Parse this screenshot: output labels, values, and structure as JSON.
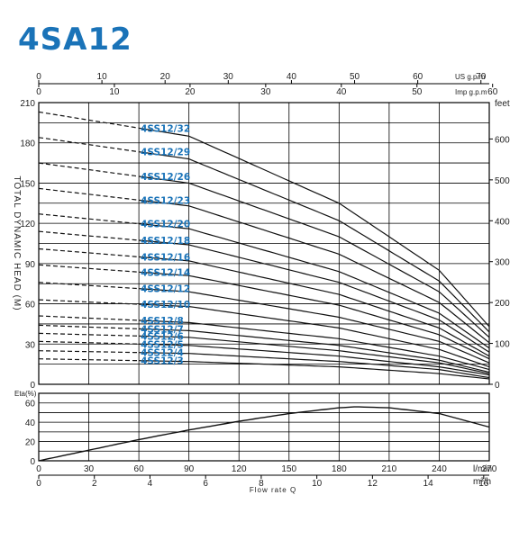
{
  "colors": {
    "title": "#1a73b8",
    "model_label": "#1a73b8",
    "curve": "#111111",
    "grid": "#000000"
  },
  "chart_data": [
    {
      "type": "line",
      "title": "4SA12",
      "top_axis_us": {
        "ticks": [
          "0",
          "10",
          "20",
          "30",
          "40",
          "50",
          "60",
          "70"
        ],
        "unit": "US g.p.m"
      },
      "top_axis_imp": {
        "ticks": [
          "0",
          "10",
          "20",
          "30",
          "40",
          "50",
          "60"
        ],
        "unit": "Imp g.p.m"
      },
      "ylabel": "TOTAL DYNAMIC HEAD (M)",
      "ylim": [
        0,
        210
      ],
      "y_ticks": [
        "0",
        "30",
        "60",
        "90",
        "120",
        "150",
        "180",
        "210"
      ],
      "right_axis": {
        "ticks": [
          "0",
          "100",
          "200",
          "300",
          "400",
          "500",
          "600"
        ],
        "unit": "feet"
      },
      "xlim": [
        0,
        270
      ],
      "series": [
        {
          "name": "4SS12/32",
          "values": [
            [
              0,
              203
            ],
            [
              90,
              185
            ],
            [
              180,
              135
            ],
            [
              240,
              85
            ],
            [
              270,
              43
            ]
          ]
        },
        {
          "name": "4SS12/29",
          "values": [
            [
              0,
              184
            ],
            [
              90,
              168
            ],
            [
              180,
              122
            ],
            [
              240,
              77
            ],
            [
              270,
              39
            ]
          ]
        },
        {
          "name": "4SS12/26",
          "values": [
            [
              0,
              165
            ],
            [
              90,
              150
            ],
            [
              180,
              110
            ],
            [
              240,
              69
            ],
            [
              270,
              35
            ]
          ]
        },
        {
          "name": "4SS12/23",
          "values": [
            [
              0,
              146
            ],
            [
              90,
              133
            ],
            [
              180,
              97
            ],
            [
              240,
              61
            ],
            [
              270,
              31
            ]
          ]
        },
        {
          "name": "4SS12/20",
          "values": [
            [
              0,
              127
            ],
            [
              90,
              116
            ],
            [
              180,
              84
            ],
            [
              240,
              53
            ],
            [
              270,
              27
            ]
          ]
        },
        {
          "name": "4SS12/18",
          "values": [
            [
              0,
              114
            ],
            [
              90,
              104
            ],
            [
              180,
              76
            ],
            [
              240,
              48
            ],
            [
              270,
              24
            ]
          ]
        },
        {
          "name": "4SS12/16",
          "values": [
            [
              0,
              101
            ],
            [
              90,
              92
            ],
            [
              180,
              67
            ],
            [
              240,
              42
            ],
            [
              270,
              21
            ]
          ]
        },
        {
          "name": "4SS12/14",
          "values": [
            [
              0,
              89
            ],
            [
              90,
              81
            ],
            [
              180,
              59
            ],
            [
              240,
              37
            ],
            [
              270,
              19
            ]
          ]
        },
        {
          "name": "4SS12/12",
          "values": [
            [
              0,
              76
            ],
            [
              90,
              69
            ],
            [
              180,
              50
            ],
            [
              240,
              32
            ],
            [
              270,
              16
            ]
          ]
        },
        {
          "name": "4SS12/10",
          "values": [
            [
              0,
              63
            ],
            [
              90,
              58
            ],
            [
              180,
              42
            ],
            [
              240,
              26
            ],
            [
              270,
              13
            ]
          ]
        },
        {
          "name": "4SS12/8",
          "values": [
            [
              0,
              51
            ],
            [
              90,
              46
            ],
            [
              180,
              34
            ],
            [
              240,
              21
            ],
            [
              270,
              11
            ]
          ]
        },
        {
          "name": "4SS12/7",
          "values": [
            [
              0,
              44
            ],
            [
              90,
              40
            ],
            [
              180,
              29
            ],
            [
              240,
              18
            ],
            [
              270,
              9
            ]
          ]
        },
        {
          "name": "4SS12/6",
          "values": [
            [
              0,
              38
            ],
            [
              90,
              35
            ],
            [
              180,
              25
            ],
            [
              240,
              16
            ],
            [
              270,
              8
            ]
          ]
        },
        {
          "name": "4SS12/5",
          "values": [
            [
              0,
              32
            ],
            [
              90,
              29
            ],
            [
              180,
              21
            ],
            [
              240,
              13
            ],
            [
              270,
              7
            ]
          ]
        },
        {
          "name": "4SS12/4",
          "values": [
            [
              0,
              25
            ],
            [
              90,
              23
            ],
            [
              180,
              17
            ],
            [
              240,
              11
            ],
            [
              270,
              5
            ]
          ]
        },
        {
          "name": "4SS12/3",
          "values": [
            [
              0,
              19
            ],
            [
              90,
              17
            ],
            [
              180,
              13
            ],
            [
              240,
              8
            ],
            [
              270,
              4
            ]
          ]
        }
      ]
    },
    {
      "type": "line",
      "ylabel": "Eta(%)",
      "ylim": [
        0,
        70
      ],
      "y_ticks": [
        "0",
        "20",
        "40",
        "60"
      ],
      "xlabel": "Flow rate Q",
      "xlim": [
        0,
        270
      ],
      "x_ticks_lmin": [
        "0",
        "30",
        "60",
        "90",
        "120",
        "150",
        "180",
        "210",
        "240",
        "270"
      ],
      "x_unit_lmin": "l/min",
      "x_ticks_m3h": [
        "0",
        "2",
        "4",
        "6",
        "8",
        "10",
        "12",
        "14",
        "16"
      ],
      "x_unit_m3h": "m³/h",
      "series": [
        {
          "values": [
            [
              0,
              0
            ],
            [
              30,
              11
            ],
            [
              60,
              22
            ],
            [
              90,
              32
            ],
            [
              120,
              41
            ],
            [
              150,
              49
            ],
            [
              180,
              55
            ],
            [
              190,
              56
            ],
            [
              210,
              55
            ],
            [
              240,
              49
            ],
            [
              270,
              35
            ]
          ]
        }
      ]
    }
  ]
}
